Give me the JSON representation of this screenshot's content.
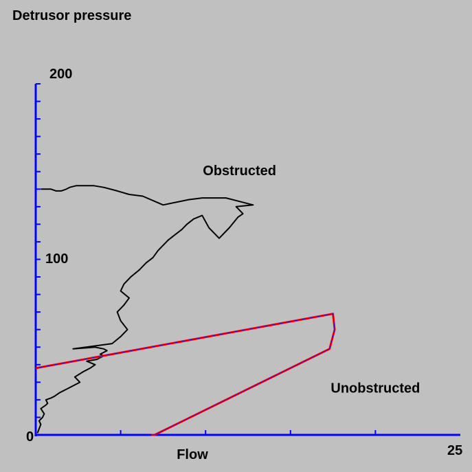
{
  "colors": {
    "background": "#c0c0c0",
    "axis": "#0000ff",
    "trace": "#000000",
    "nomogram": "#ff0000",
    "nomogram_inner": "#0000ff"
  },
  "chart_data": {
    "type": "line",
    "title": "Detrusor pressure",
    "xlabel": "Flow",
    "ylabel": "",
    "xlim": [
      0,
      25
    ],
    "ylim": [
      0,
      200
    ],
    "x_tick_labels": [
      "0",
      "25"
    ],
    "y_tick_labels": [
      "0",
      "100",
      "200"
    ],
    "x_minor_ticks": [
      5,
      10,
      15,
      20
    ],
    "y_minor_tick_step": 10,
    "region_labels": [
      {
        "text": "Obstructed",
        "x": 12.0,
        "y": 148
      },
      {
        "text": "Unobstructed",
        "x": 20.0,
        "y": 24
      }
    ],
    "series": [
      {
        "role": "pressure-flow-trace",
        "x": [
          0.1,
          0.3,
          0.2,
          0.4,
          0.5,
          0.3,
          0.6,
          0.7,
          0.6,
          0.9,
          1.1,
          1.4,
          1.8,
          2.2,
          2.6,
          2.3,
          2.8,
          3.2,
          3.5,
          3.0,
          3.6,
          4.0,
          3.8,
          4.2,
          4.0,
          3.5,
          2.2,
          4.5,
          5.0,
          5.4,
          5.0,
          4.8,
          5.2,
          5.5,
          5.0,
          5.2,
          5.6,
          6.1,
          6.5,
          6.9,
          7.2,
          7.5,
          7.8,
          8.2,
          8.6,
          8.9,
          9.3,
          9.8,
          10.2,
          10.8,
          11.4,
          11.9,
          12.2,
          11.8,
          12.8,
          12.0,
          11.2,
          9.8,
          9.0,
          7.5,
          6.3,
          5.5,
          4.8,
          4.0,
          3.4,
          2.8,
          2.4,
          2.0,
          1.8,
          1.5,
          1.2,
          0.9,
          0.6,
          0.3
        ],
        "y": [
          1,
          6,
          8,
          10,
          12,
          15,
          17,
          18,
          20,
          21,
          22,
          24,
          26,
          28,
          30,
          33,
          36,
          38,
          40,
          42,
          43,
          45,
          46,
          48,
          49,
          50,
          49,
          52,
          56,
          60,
          65,
          70,
          74,
          78,
          82,
          86,
          90,
          94,
          98,
          101,
          105,
          108,
          111,
          114,
          117,
          120,
          123,
          125,
          118,
          112,
          118,
          124,
          126,
          130,
          131,
          133,
          135,
          135,
          134,
          131,
          136,
          137,
          139,
          141,
          142,
          142,
          142,
          141,
          140,
          139,
          139,
          140,
          140,
          140
        ]
      },
      {
        "role": "nomogram-boundary",
        "x": [
          0.0,
          17.5,
          17.6,
          17.3,
          7.0,
          6.8
        ],
        "y": [
          38,
          69,
          60,
          49,
          0,
          0
        ]
      }
    ]
  }
}
